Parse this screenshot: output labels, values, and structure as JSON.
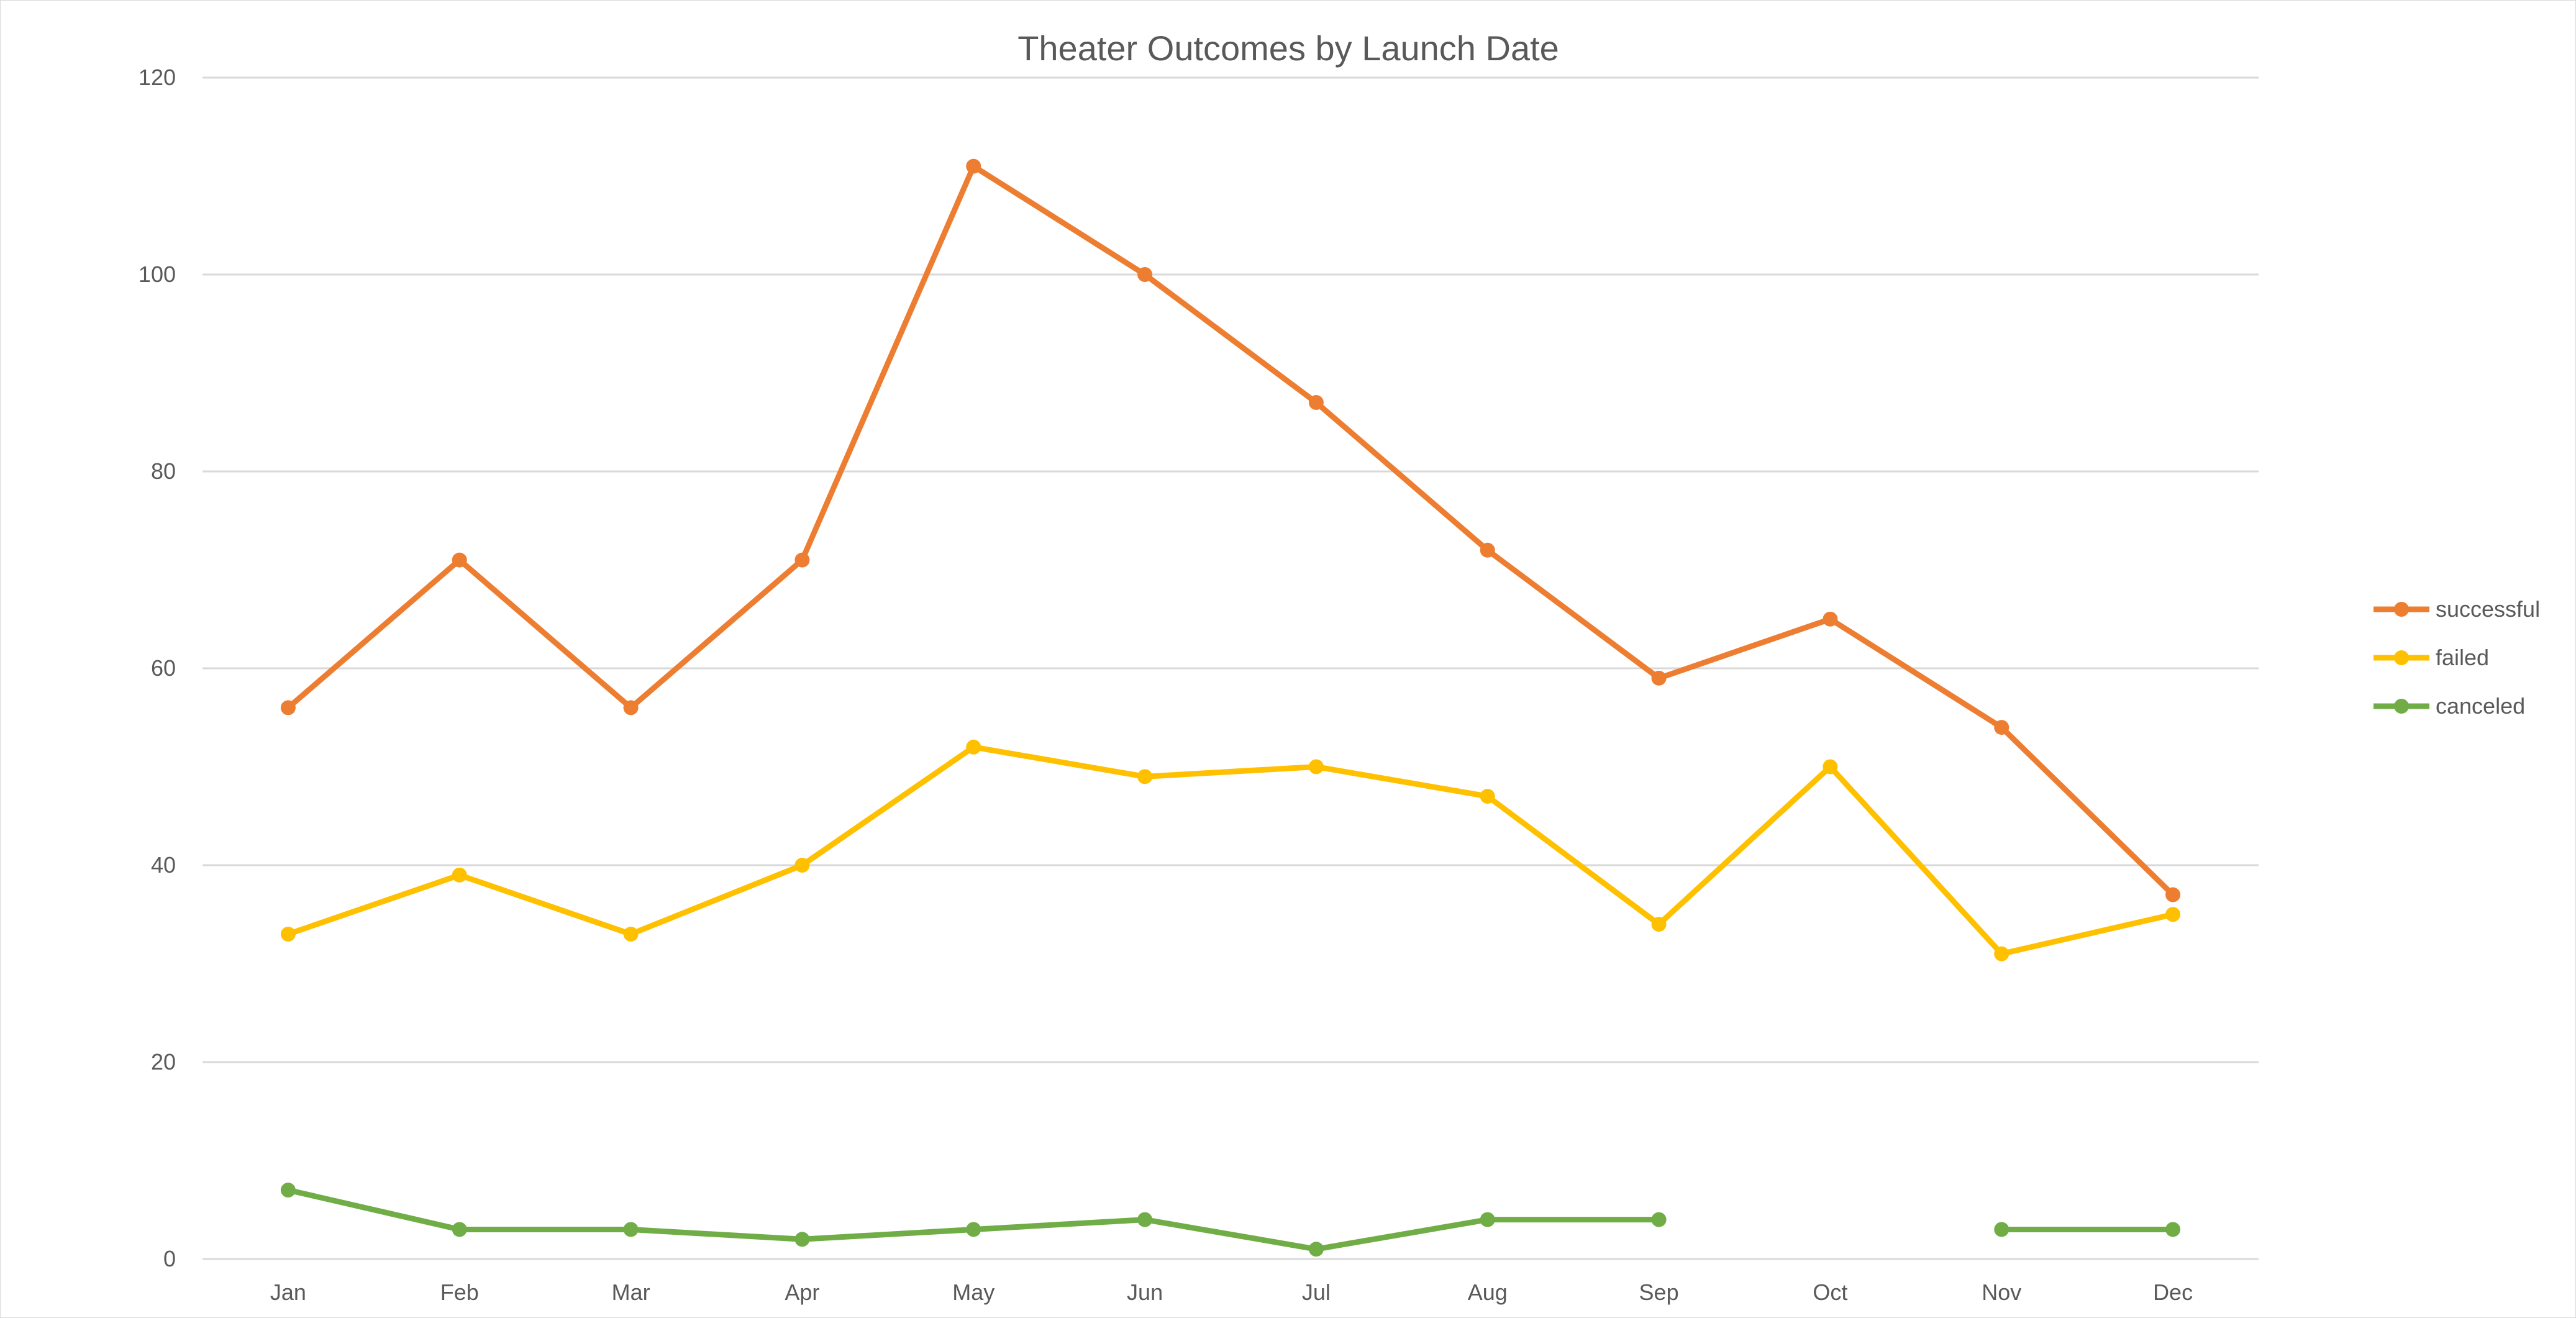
{
  "chart_data": {
    "type": "line",
    "title": "Theater Outcomes by Launch Date",
    "xlabel": "",
    "ylabel": "",
    "categories": [
      "Jan",
      "Feb",
      "Mar",
      "Apr",
      "May",
      "Jun",
      "Jul",
      "Aug",
      "Sep",
      "Oct",
      "Nov",
      "Dec"
    ],
    "ylim": [
      0,
      120
    ],
    "yticks": [
      0,
      20,
      40,
      60,
      80,
      100,
      120
    ],
    "grid": true,
    "legend_position": "right",
    "series": [
      {
        "name": "successful",
        "color": "#ED7D31",
        "values": [
          56,
          71,
          56,
          71,
          111,
          100,
          87,
          72,
          59,
          65,
          54,
          37
        ]
      },
      {
        "name": "failed",
        "color": "#FFC000",
        "values": [
          33,
          39,
          33,
          40,
          52,
          49,
          50,
          47,
          34,
          50,
          31,
          35
        ]
      },
      {
        "name": "canceled",
        "color": "#70AD47",
        "values": [
          7,
          3,
          3,
          2,
          3,
          4,
          1,
          4,
          4,
          null,
          3,
          3
        ]
      }
    ]
  }
}
